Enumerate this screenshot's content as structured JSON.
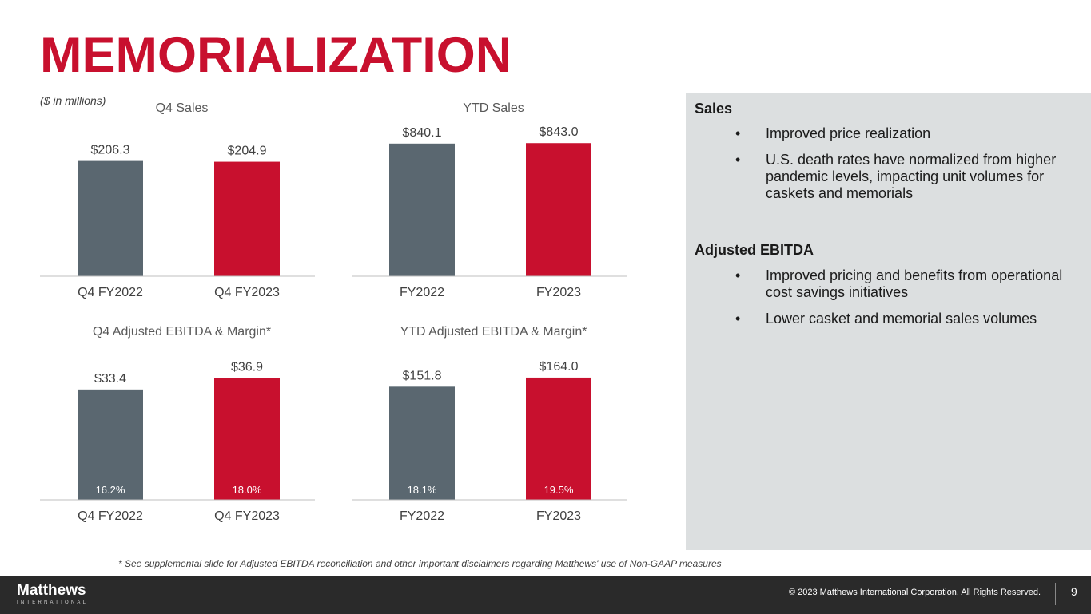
{
  "title": "MEMORIALIZATION",
  "units_note": "($ in millions)",
  "colors": {
    "brand_red": "#c8102e",
    "slate": "#5a6770",
    "panel_bg": "#dcdfe0"
  },
  "chart_data": [
    {
      "type": "bar",
      "title": "Q4 Sales",
      "categories": [
        "Q4 FY2022",
        "Q4 FY2023"
      ],
      "values": [
        206.3,
        204.9
      ],
      "value_labels": [
        "$206.3",
        "$204.9"
      ],
      "ylim": [
        0,
        260
      ]
    },
    {
      "type": "bar",
      "title": "YTD Sales",
      "categories": [
        "FY2022",
        "FY2023"
      ],
      "values": [
        840.1,
        843.0
      ],
      "value_labels": [
        "$840.1",
        "$843.0"
      ],
      "ylim": [
        0,
        920
      ]
    },
    {
      "type": "bar",
      "title": "Q4 Adjusted EBITDA & Margin*",
      "categories": [
        "Q4 FY2022",
        "Q4 FY2023"
      ],
      "values": [
        33.4,
        36.9
      ],
      "value_labels": [
        "$33.4",
        "$36.9"
      ],
      "margins": [
        "16.2%",
        "18.0%"
      ],
      "ylim": [
        0,
        44
      ]
    },
    {
      "type": "bar",
      "title": "YTD Adjusted EBITDA & Margin*",
      "categories": [
        "FY2022",
        "FY2023"
      ],
      "values": [
        151.8,
        164.0
      ],
      "value_labels": [
        "$151.8",
        "$164.0"
      ],
      "margins": [
        "18.1%",
        "19.5%"
      ],
      "ylim": [
        0,
        195
      ]
    }
  ],
  "panel": {
    "sales_heading": "Sales",
    "sales_bullets": [
      "Improved price realization",
      "U.S. death rates have normalized from higher pandemic levels, impacting unit volumes for caskets and memorials"
    ],
    "ebitda_heading": "Adjusted EBITDA",
    "ebitda_bullets": [
      "Improved pricing and benefits from operational cost savings initiatives",
      "Lower casket and memorial sales volumes"
    ],
    "bullet_char": "•"
  },
  "footnote": "* See supplemental slide for Adjusted EBITDA reconciliation and other important disclaimers regarding Matthews' use of Non-GAAP measures",
  "footer": {
    "logo_word": "Matthews",
    "logo_sub": "INTERNATIONAL",
    "copyright": "© 2023 Matthews International Corporation. All Rights Reserved.",
    "page_number": "9"
  }
}
